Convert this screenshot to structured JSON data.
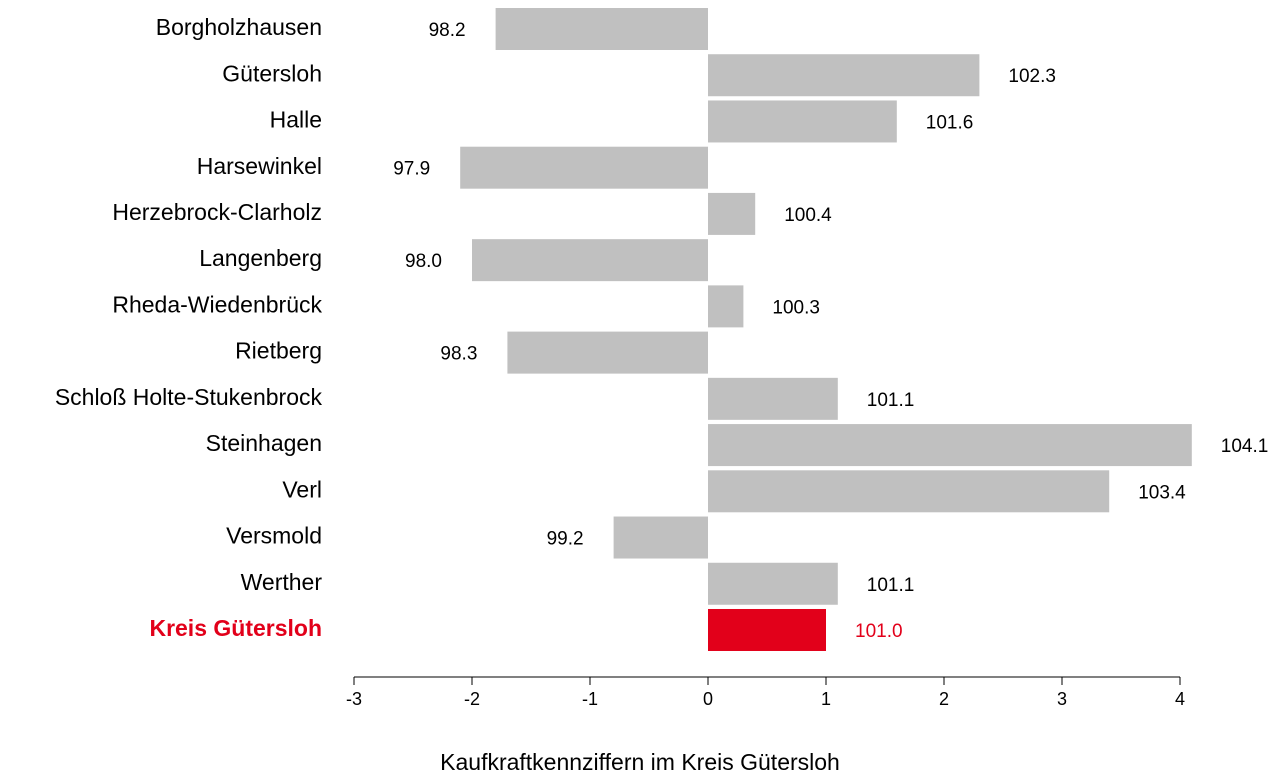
{
  "chart_data": {
    "type": "barh",
    "x_label": "Kaufkraftkennziffern im Kreis Gütersloh",
    "categories": [
      "Borgholzhausen",
      "Gütersloh",
      "Halle",
      "Harsewinkel",
      "Herzebrock-Clarholz",
      "Langenberg",
      "Rheda-Wiedenbrück",
      "Rietberg",
      "Schloß Holte-Stukenbrock",
      "Steinhagen",
      "Verl",
      "Versmold",
      "Werther",
      "Kreis Gütersloh"
    ],
    "values": [
      -1.8,
      2.3,
      1.6,
      -2.1,
      0.4,
      -2.0,
      0.3,
      -1.7,
      1.1,
      4.1,
      3.4,
      -0.8,
      1.1,
      1.0
    ],
    "value_labels": [
      "98.2",
      "102.3",
      "101.6",
      "97.9",
      "100.4",
      "98.0",
      "100.3",
      "98.3",
      "101.1",
      "104.1",
      "103.4",
      "99.2",
      "101.1",
      "101.0"
    ],
    "color": "#c0c0c0",
    "highlight_index": 13,
    "highlight_color": "#e2001a",
    "xlim": [
      -3,
      4
    ],
    "xticks": [
      -3,
      -2,
      -1,
      0,
      1,
      2,
      3,
      4
    ]
  }
}
